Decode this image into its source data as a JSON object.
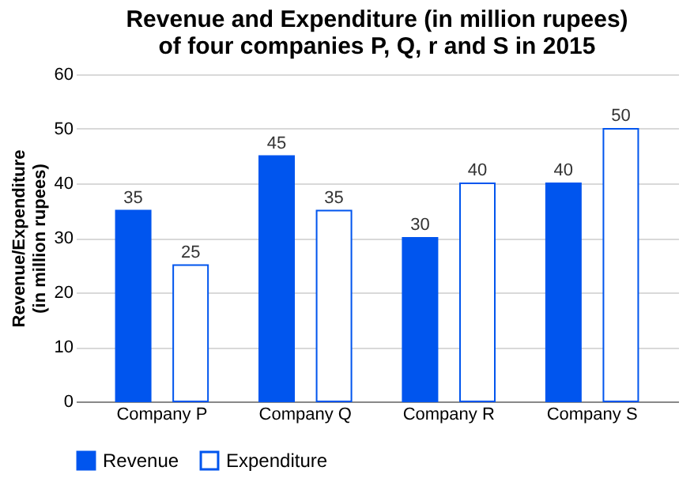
{
  "chart_data": {
    "type": "bar",
    "title": "Revenue and Expenditure (in million rupees)\nof four companies P, Q, r and S in 2015",
    "ylabel": "Revenue/Expenditure\n(in million rupees)",
    "categories": [
      "Company P",
      "Company Q",
      "Company R",
      "Company S"
    ],
    "series": [
      {
        "name": "Revenue",
        "color": "#0055ee",
        "values": [
          35,
          45,
          30,
          40
        ]
      },
      {
        "name": "Expenditure",
        "color": "#ffffff",
        "values": [
          25,
          35,
          40,
          50
        ]
      }
    ],
    "ylim": [
      0,
      60
    ],
    "yticks": [
      0,
      10,
      20,
      30,
      40,
      50,
      60
    ],
    "grid": "y",
    "legend": "bottom",
    "data_labels": true
  }
}
